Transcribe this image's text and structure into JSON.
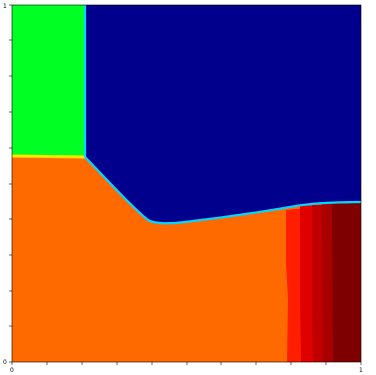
{
  "axes": {
    "x_tick_labels": [
      "0",
      "1"
    ],
    "y_tick_labels": [
      "0",
      "1"
    ],
    "xlim": [
      0,
      1
    ],
    "ylim": [
      0,
      1
    ]
  },
  "colors": {
    "dark_blue": "#00008C",
    "green": "#00FF22",
    "orange": "#FF6A00",
    "red": "#FF1F00",
    "red_dark": "#E00000",
    "maroon_light": "#C00000",
    "maroon": "#A80000",
    "maroon_dark": "#7F0000",
    "cyan_interface": "#00D8FF",
    "yellow_interface": "#FFE400"
  }
}
